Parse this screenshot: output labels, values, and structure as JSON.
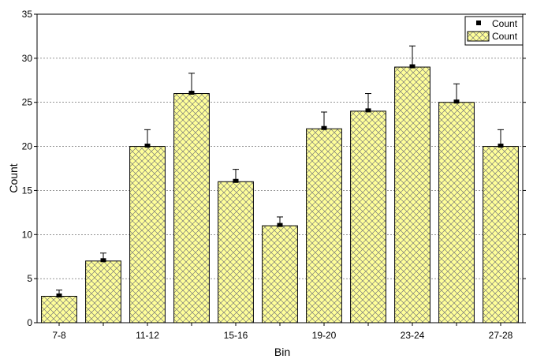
{
  "chart_data": {
    "type": "bar",
    "xlabel": "Bin",
    "ylabel": "Count",
    "ylim": [
      0,
      35
    ],
    "yticks": [
      0,
      5,
      10,
      15,
      20,
      25,
      30,
      35
    ],
    "categories": [
      "7-8",
      "9-10",
      "11-12",
      "13-14",
      "15-16",
      "17-18",
      "19-20",
      "21-22",
      "23-24",
      "25-26",
      "27-28"
    ],
    "category_label_shown": [
      true,
      false,
      true,
      false,
      true,
      false,
      true,
      false,
      true,
      false,
      true
    ],
    "series": [
      {
        "name": "Count",
        "values": [
          3,
          7,
          20,
          26,
          16,
          11,
          22,
          24,
          29,
          25,
          20
        ],
        "error_plus": [
          0.7,
          0.9,
          1.9,
          2.3,
          1.4,
          1.0,
          1.9,
          2.0,
          2.4,
          2.1,
          1.9
        ]
      }
    ],
    "legend": {
      "position": "top-right",
      "entries": [
        {
          "label": "Count",
          "symbol": "square-marker"
        },
        {
          "label": "Count",
          "symbol": "hatched-bar"
        }
      ]
    },
    "grid": {
      "y_major": true,
      "style": "dashed"
    },
    "colors": {
      "bar_fill": "#ffff99",
      "bar_hatch": "#7a7a7a",
      "bar_edge": "#000000",
      "marker": "#000000"
    }
  }
}
